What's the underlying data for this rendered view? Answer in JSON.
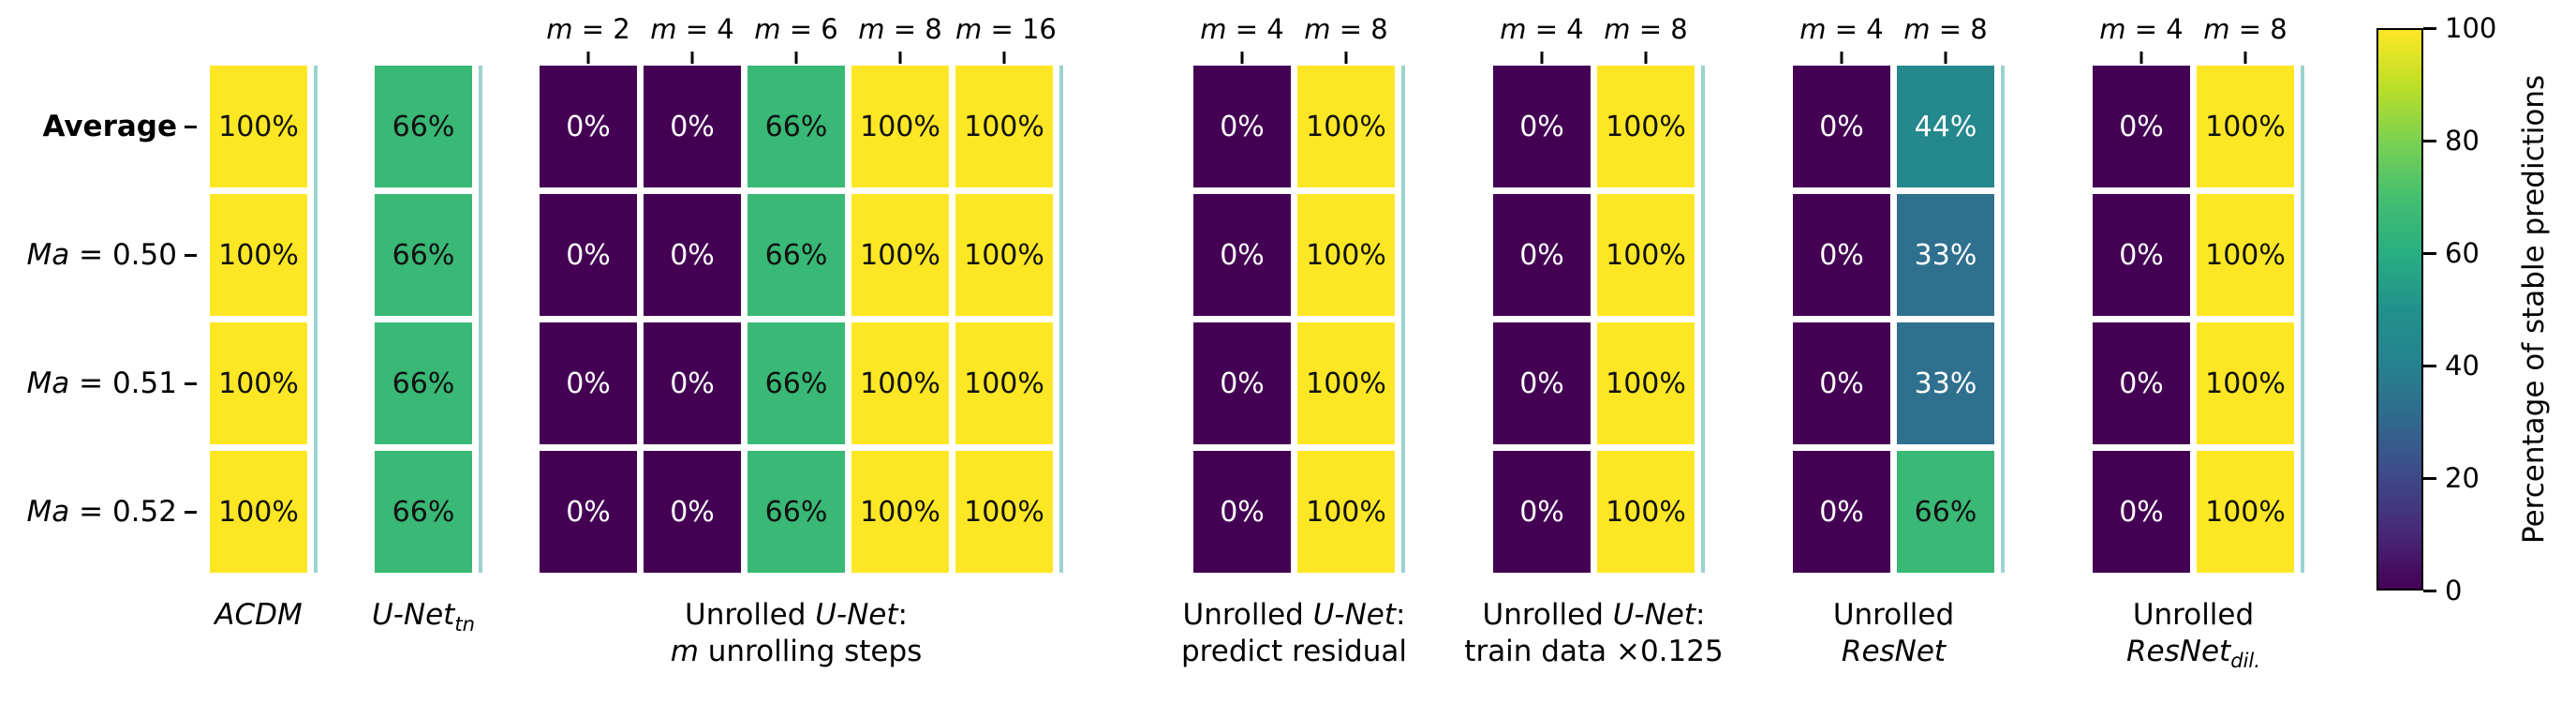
{
  "figure": {
    "background": "#ffffff"
  },
  "chart_data": {
    "type": "heatmap",
    "title": "",
    "colormap": "viridis",
    "colormap_stops": [
      "#440154",
      "#482878",
      "#3e4989",
      "#31688e",
      "#26828e",
      "#21918c",
      "#28ae80",
      "#44bf70",
      "#7ad151",
      "#bddf26",
      "#fde725"
    ],
    "value_range": [
      0,
      100
    ],
    "value_suffix": "%",
    "grid": "off",
    "colorbar": {
      "label": "Percentage of stable predictions",
      "position": "right",
      "ticks": [
        0,
        20,
        40,
        60,
        80,
        100
      ]
    },
    "rows": [
      {
        "name": "Average",
        "segments": [
          {
            "t": "Average",
            "b": true
          }
        ]
      },
      {
        "name": "Ma = 0.50",
        "segments": [
          {
            "t": "Ma",
            "i": true
          },
          {
            "t": " = 0.50"
          }
        ]
      },
      {
        "name": "Ma = 0.51",
        "segments": [
          {
            "t": "Ma",
            "i": true
          },
          {
            "t": " = 0.51"
          }
        ]
      },
      {
        "name": "Ma = 0.52",
        "segments": [
          {
            "t": "Ma",
            "i": true
          },
          {
            "t": " = 0.52"
          }
        ]
      }
    ],
    "groups": [
      {
        "name": "ACDM",
        "columns": [],
        "label_lines": [
          [
            {
              "t": "ACDM",
              "i": true
            }
          ]
        ],
        "values": [
          [
            100
          ],
          [
            100
          ],
          [
            100
          ],
          [
            100
          ]
        ]
      },
      {
        "name": "U-Net tn",
        "columns": [],
        "label_lines": [
          [
            {
              "t": "U-Net",
              "i": true
            },
            {
              "t": "tn",
              "i": true,
              "sub": true
            }
          ]
        ],
        "values": [
          [
            66
          ],
          [
            66
          ],
          [
            66
          ],
          [
            66
          ]
        ]
      },
      {
        "name": "Unrolled U-Net: m unrolling steps",
        "columns": [
          [
            {
              "t": "m",
              "i": true
            },
            {
              "t": " = 2"
            }
          ],
          [
            {
              "t": "m",
              "i": true
            },
            {
              "t": " = 4"
            }
          ],
          [
            {
              "t": "m",
              "i": true
            },
            {
              "t": " = 6"
            }
          ],
          [
            {
              "t": "m",
              "i": true
            },
            {
              "t": " = 8"
            }
          ],
          [
            {
              "t": "m",
              "i": true
            },
            {
              "t": " = 16"
            }
          ]
        ],
        "label_lines": [
          [
            {
              "t": "Unrolled "
            },
            {
              "t": "U-Net",
              "i": true
            },
            {
              "t": ":"
            }
          ],
          [
            {
              "t": "m",
              "i": true
            },
            {
              "t": " unrolling steps"
            }
          ]
        ],
        "values": [
          [
            0,
            0,
            66,
            100,
            100
          ],
          [
            0,
            0,
            66,
            100,
            100
          ],
          [
            0,
            0,
            66,
            100,
            100
          ],
          [
            0,
            0,
            66,
            100,
            100
          ]
        ]
      },
      {
        "name": "Unrolled U-Net: predict residual",
        "columns": [
          [
            {
              "t": "m",
              "i": true
            },
            {
              "t": " = 4"
            }
          ],
          [
            {
              "t": "m",
              "i": true
            },
            {
              "t": " = 8"
            }
          ]
        ],
        "label_lines": [
          [
            {
              "t": "Unrolled "
            },
            {
              "t": "U-Net",
              "i": true
            },
            {
              "t": ":"
            }
          ],
          [
            {
              "t": "predict residual"
            }
          ]
        ],
        "values": [
          [
            0,
            100
          ],
          [
            0,
            100
          ],
          [
            0,
            100
          ],
          [
            0,
            100
          ]
        ]
      },
      {
        "name": "Unrolled U-Net: train data ×0.125",
        "columns": [
          [
            {
              "t": "m",
              "i": true
            },
            {
              "t": " = 4"
            }
          ],
          [
            {
              "t": "m",
              "i": true
            },
            {
              "t": " = 8"
            }
          ]
        ],
        "label_lines": [
          [
            {
              "t": "Unrolled "
            },
            {
              "t": "U-Net",
              "i": true
            },
            {
              "t": ":"
            }
          ],
          [
            {
              "t": "train data ×0.125"
            }
          ]
        ],
        "values": [
          [
            0,
            100
          ],
          [
            0,
            100
          ],
          [
            0,
            100
          ],
          [
            0,
            100
          ]
        ]
      },
      {
        "name": "Unrolled ResNet",
        "columns": [
          [
            {
              "t": "m",
              "i": true
            },
            {
              "t": " = 4"
            }
          ],
          [
            {
              "t": "m",
              "i": true
            },
            {
              "t": " = 8"
            }
          ]
        ],
        "label_lines": [
          [
            {
              "t": "Unrolled"
            }
          ],
          [
            {
              "t": "ResNet",
              "i": true
            }
          ]
        ],
        "values": [
          [
            0,
            44
          ],
          [
            0,
            33
          ],
          [
            0,
            33
          ],
          [
            0,
            66
          ]
        ]
      },
      {
        "name": "Unrolled ResNet dil.",
        "columns": [
          [
            {
              "t": "m",
              "i": true
            },
            {
              "t": " = 4"
            }
          ],
          [
            {
              "t": "m",
              "i": true
            },
            {
              "t": " = 8"
            }
          ]
        ],
        "label_lines": [
          [
            {
              "t": "Unrolled"
            }
          ],
          [
            {
              "t": "ResNet",
              "i": true
            },
            {
              "t": "dil.",
              "i": true,
              "sub": true
            }
          ]
        ],
        "values": [
          [
            0,
            100
          ],
          [
            0,
            100
          ],
          [
            0,
            100
          ],
          [
            0,
            100
          ]
        ]
      }
    ]
  }
}
